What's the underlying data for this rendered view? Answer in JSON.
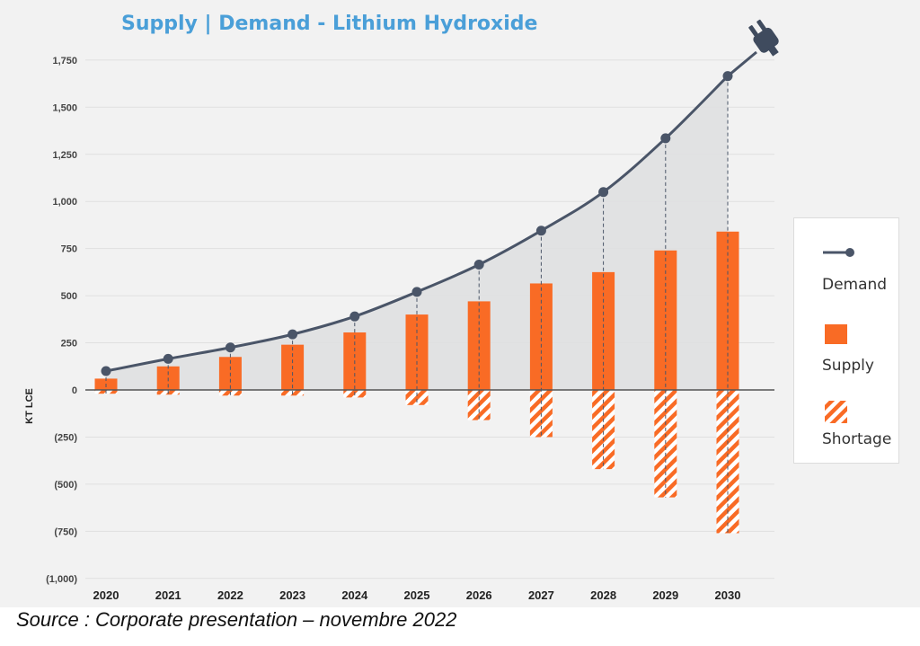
{
  "chart_data": {
    "type": "bar+line",
    "title": "Supply | Demand - Lithium Hydroxide",
    "ylabel": "KT LCE",
    "xlabel": "",
    "ylim": [
      -1000,
      1750
    ],
    "yticks": [
      1750,
      1500,
      1250,
      1000,
      750,
      500,
      250,
      0,
      -250,
      -500,
      -750,
      -1000
    ],
    "ytick_labels": [
      "1,750",
      "1,500",
      "1,250",
      "1,000",
      "750",
      "500",
      "250",
      "0",
      "(250)",
      "(500)",
      "(750)",
      "(1,000)"
    ],
    "categories": [
      "2020",
      "2021",
      "2022",
      "2023",
      "2024",
      "2025",
      "2026",
      "2027",
      "2028",
      "2029",
      "2030"
    ],
    "series": [
      {
        "name": "Demand",
        "type": "line",
        "color": "#4a5568",
        "values": [
          100,
          165,
          225,
          295,
          390,
          520,
          665,
          845,
          1050,
          1335,
          1665
        ]
      },
      {
        "name": "Supply",
        "type": "bar",
        "color": "#f96b25",
        "values": [
          60,
          125,
          175,
          240,
          305,
          400,
          470,
          565,
          625,
          740,
          840
        ]
      },
      {
        "name": "Shortage",
        "type": "bar-hatched",
        "color": "#f96b25",
        "values": [
          -20,
          -25,
          -30,
          -30,
          -40,
          -80,
          -160,
          -250,
          -420,
          -570,
          -760
        ]
      }
    ],
    "legend": {
      "position": "right",
      "entries": [
        "Demand",
        "Supply",
        "Shortage"
      ]
    }
  },
  "source": "Source : Corporate presentation – novembre 2022"
}
